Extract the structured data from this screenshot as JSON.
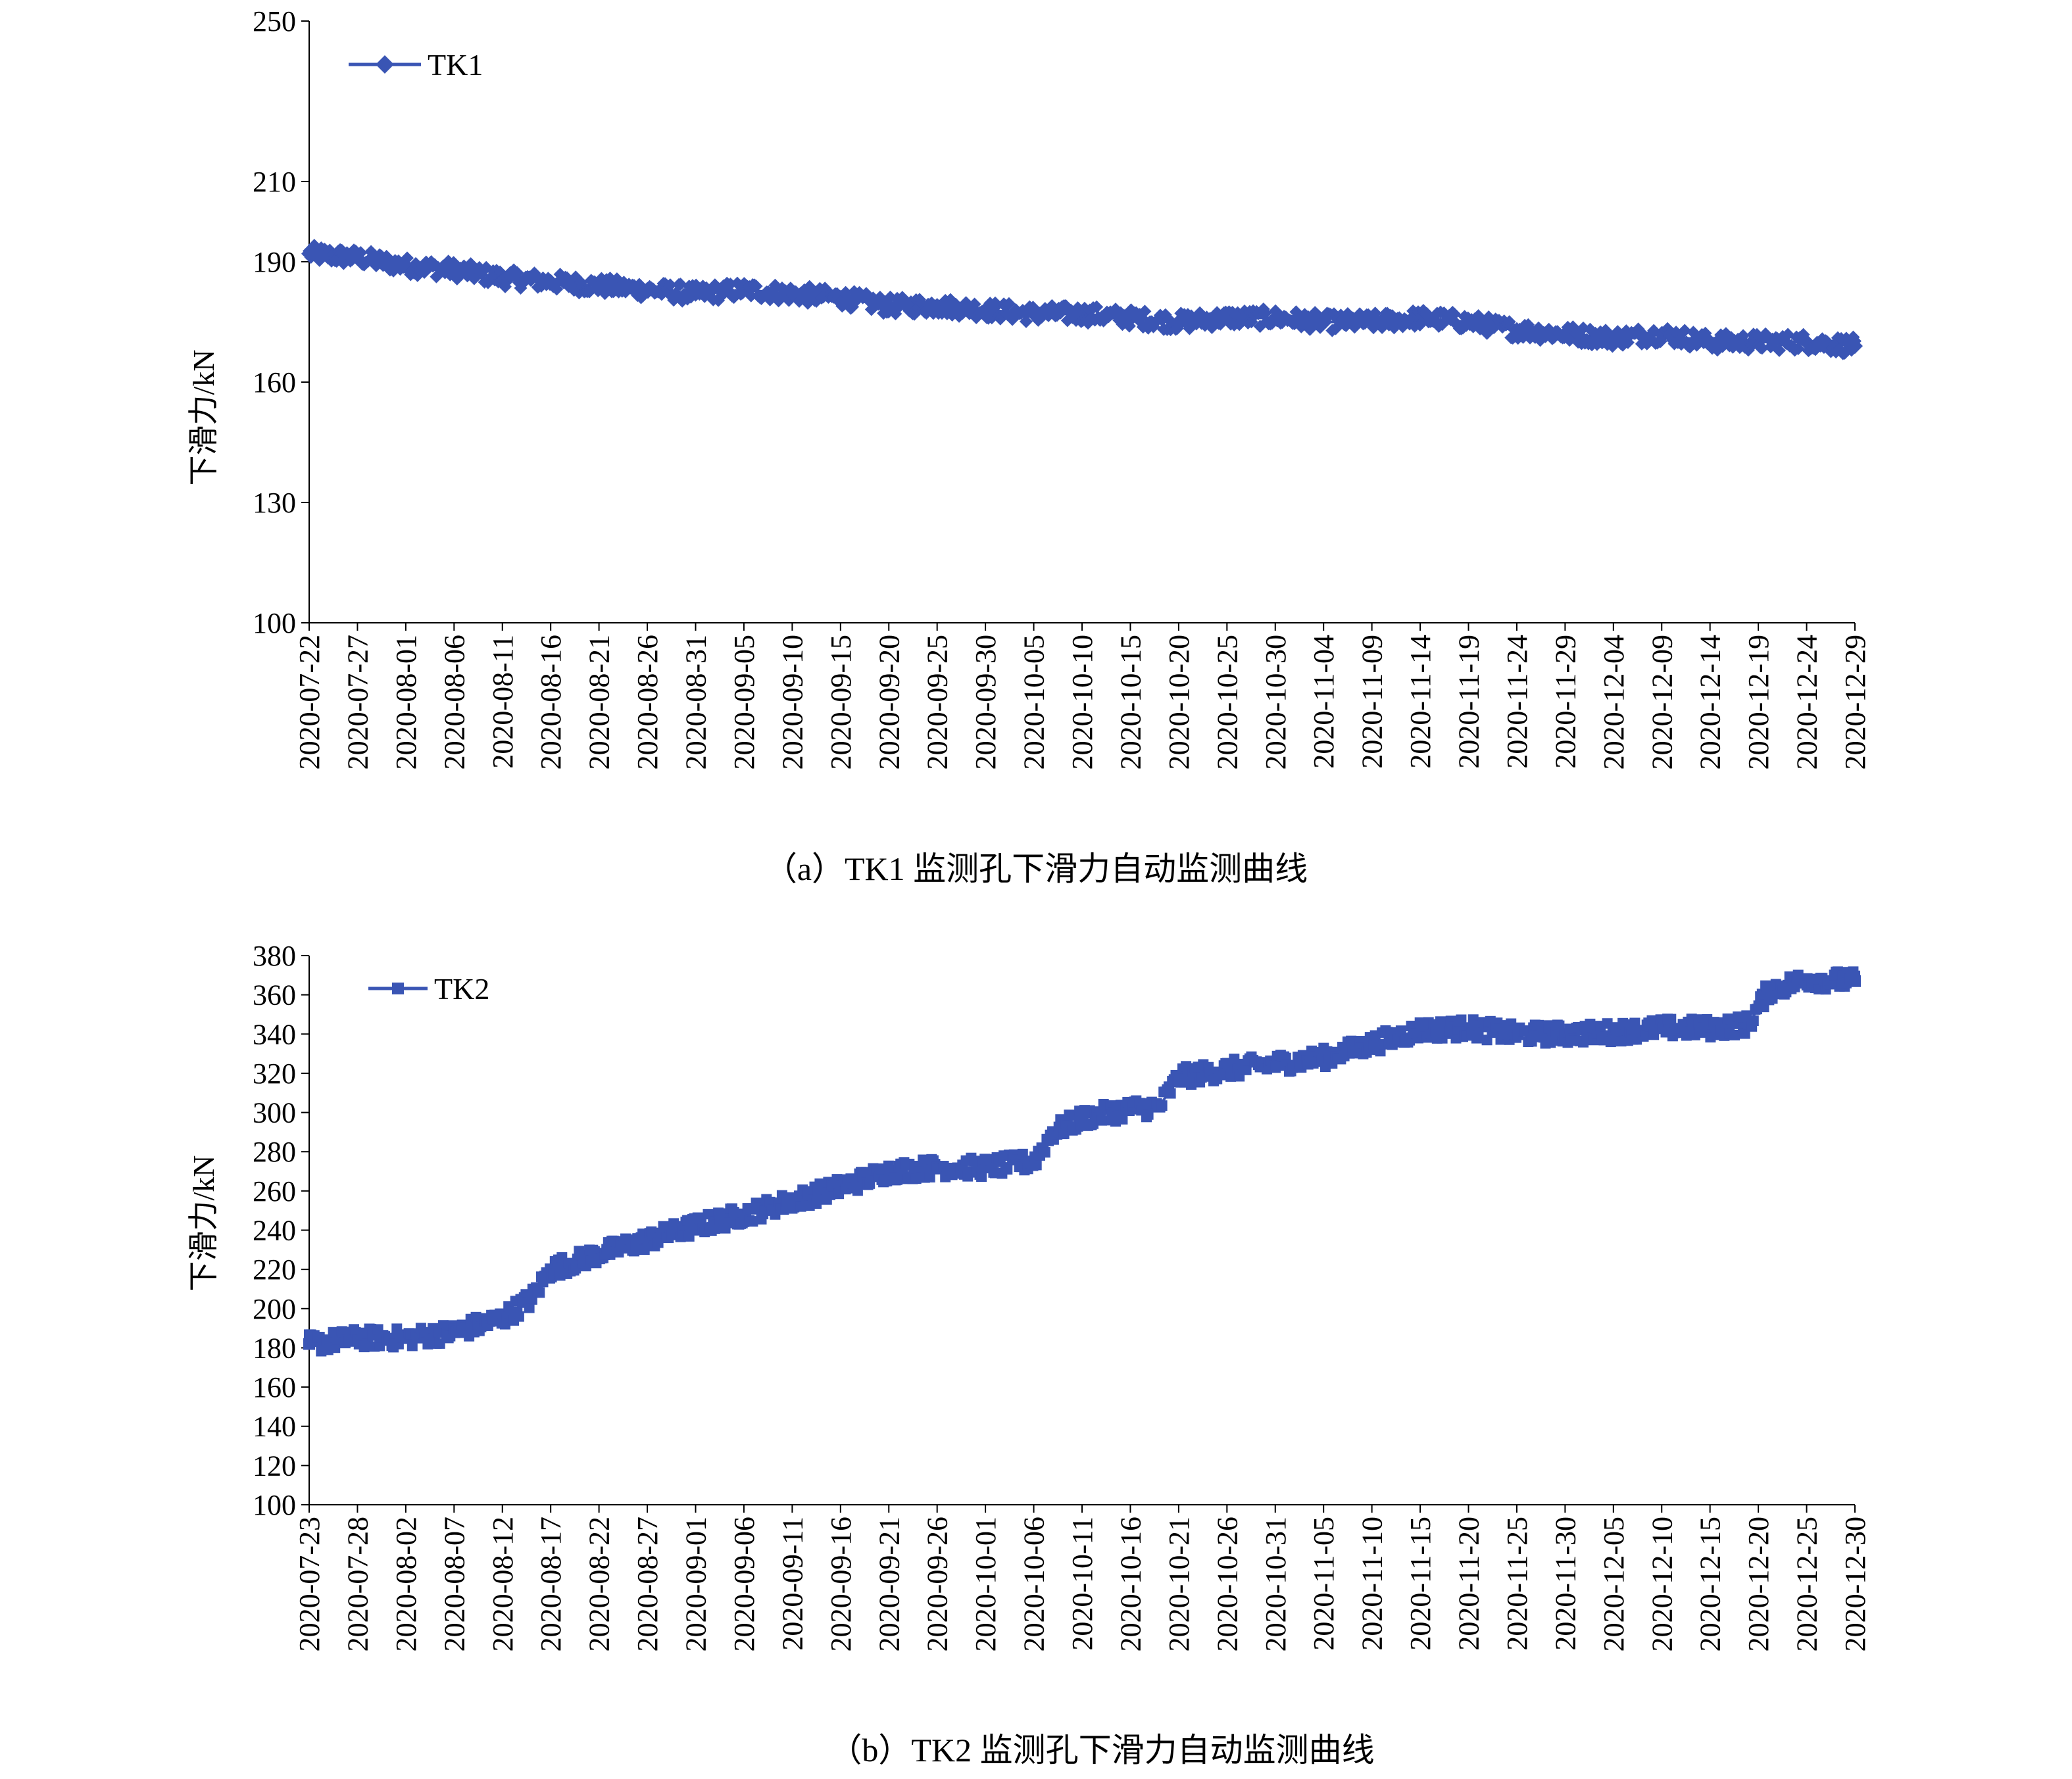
{
  "chart_data": [
    {
      "type": "line",
      "caption": "（a）TK1 监测孔下滑力自动监测曲线",
      "ylabel": "下滑力/kN",
      "xlabel": "",
      "ylim": [
        100,
        250
      ],
      "yticks": [
        "100",
        "130",
        "160",
        "190",
        "210",
        "250"
      ],
      "x_tick_labels": [
        "2020-07-22",
        "2020-07-27",
        "2020-08-01",
        "2020-08-06",
        "2020-08-11",
        "2020-08-16",
        "2020-08-21",
        "2020-08-26",
        "2020-08-31",
        "2020-09-05",
        "2020-09-10",
        "2020-09-15",
        "2020-09-20",
        "2020-09-25",
        "2020-09-30",
        "2020-10-05",
        "2020-10-10",
        "2020-10-15",
        "2020-10-20",
        "2020-10-25",
        "2020-10-30",
        "2020-11-04",
        "2020-11-09",
        "2020-11-14",
        "2020-11-19",
        "2020-11-24",
        "2020-11-29",
        "2020-12-04",
        "2020-12-09",
        "2020-12-14",
        "2020-12-19",
        "2020-12-24",
        "2020-12-29"
      ],
      "xlim": [
        "2020-07-22",
        "2020-12-29"
      ],
      "marker": "diamond",
      "series": [
        {
          "name": "TK1",
          "color": "#3a55b4",
          "x": [
            "2020-07-22",
            "2020-07-27",
            "2020-08-01",
            "2020-08-06",
            "2020-08-11",
            "2020-08-16",
            "2020-08-21",
            "2020-08-26",
            "2020-08-31",
            "2020-09-05",
            "2020-09-10",
            "2020-09-15",
            "2020-09-20",
            "2020-09-25",
            "2020-09-30",
            "2020-10-05",
            "2020-10-10",
            "2020-10-15",
            "2020-10-20",
            "2020-10-25",
            "2020-10-30",
            "2020-11-04",
            "2020-11-09",
            "2020-11-14",
            "2020-11-19",
            "2020-11-24",
            "2020-11-29",
            "2020-12-04",
            "2020-12-09",
            "2020-12-14",
            "2020-12-19",
            "2020-12-24",
            "2020-12-29"
          ],
          "y": [
            192,
            191,
            189,
            188,
            186,
            185,
            184,
            183,
            182,
            183,
            182,
            181,
            179,
            179,
            178,
            177,
            177,
            176,
            175,
            176,
            176,
            175,
            175,
            176,
            175,
            173,
            172,
            171,
            172,
            170,
            170,
            170,
            169
          ]
        }
      ]
    },
    {
      "type": "line",
      "caption": "（b）TK2 监测孔下滑力自动监测曲线",
      "ylabel": "下滑力/kN",
      "xlabel": "",
      "ylim": [
        100,
        380
      ],
      "yticks": [
        "100",
        "120",
        "140",
        "160",
        "180",
        "200",
        "220",
        "240",
        "260",
        "280",
        "300",
        "320",
        "340",
        "360",
        "380"
      ],
      "x_tick_labels": [
        "2020-07-23",
        "2020-07-28",
        "2020-08-02",
        "2020-08-07",
        "2020-08-12",
        "2020-08-17",
        "2020-08-22",
        "2020-08-27",
        "2020-09-01",
        "2020-09-06",
        "2020-09-11",
        "2020-09-16",
        "2020-09-21",
        "2020-09-26",
        "2020-10-01",
        "2020-10-06",
        "2020-10-11",
        "2020-10-16",
        "2020-10-21",
        "2020-10-26",
        "2020-10-31",
        "2020-11-05",
        "2020-11-10",
        "2020-11-15",
        "2020-11-20",
        "2020-11-25",
        "2020-11-30",
        "2020-12-05",
        "2020-12-10",
        "2020-12-15",
        "2020-12-20",
        "2020-12-25",
        "2020-12-30"
      ],
      "xlim": [
        "2020-07-23",
        "2020-12-30"
      ],
      "marker": "square",
      "series": [
        {
          "name": "TK2",
          "color": "#3a55b4",
          "x": [
            "2020-07-23",
            "2020-07-28",
            "2020-08-02",
            "2020-08-07",
            "2020-08-12",
            "2020-08-15",
            "2020-08-17",
            "2020-08-22",
            "2020-08-27",
            "2020-09-01",
            "2020-09-06",
            "2020-09-11",
            "2020-09-16",
            "2020-09-21",
            "2020-09-26",
            "2020-10-01",
            "2020-10-06",
            "2020-10-08",
            "2020-10-11",
            "2020-10-16",
            "2020-10-19",
            "2020-10-21",
            "2020-10-26",
            "2020-10-31",
            "2020-11-05",
            "2020-11-10",
            "2020-11-15",
            "2020-11-20",
            "2020-11-25",
            "2020-11-30",
            "2020-12-05",
            "2020-12-10",
            "2020-12-15",
            "2020-12-19",
            "2020-12-21",
            "2020-12-25",
            "2020-12-30"
          ],
          "y": [
            182,
            185,
            185,
            188,
            195,
            205,
            220,
            228,
            235,
            242,
            248,
            255,
            262,
            270,
            272,
            272,
            275,
            290,
            297,
            302,
            303,
            318,
            322,
            325,
            328,
            335,
            342,
            343,
            340,
            340,
            341,
            343,
            343,
            345,
            362,
            368,
            367
          ]
        }
      ]
    }
  ]
}
